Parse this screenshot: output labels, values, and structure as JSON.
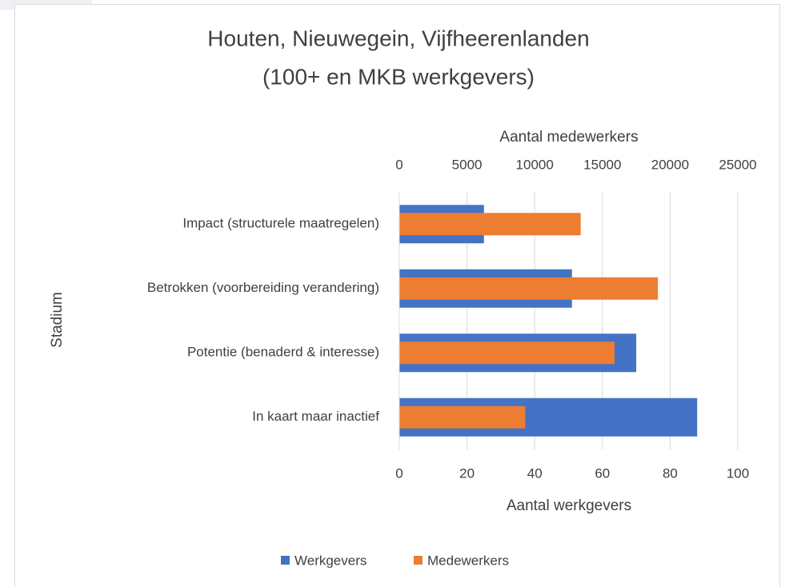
{
  "chart_data": {
    "type": "bar",
    "orientation": "horizontal",
    "title": "Houten, Nieuwegein, Vijfheerenlanden",
    "subtitle": "(100+ en MKB werkgevers)",
    "y_label": "Stadium",
    "x_label": "Aantal werkgevers",
    "x2_label": "Aantal medewerkers",
    "categories": [
      "Impact (structurele maatregelen)",
      "Betrokken (voorbereiding verandering)",
      "Potentie (benaderd & interesse)",
      "In kaart maar inactief"
    ],
    "series": [
      {
        "name": "Werkgevers",
        "color": "#4472c4",
        "axis": "x",
        "values": [
          25,
          51,
          70,
          88
        ]
      },
      {
        "name": "Medewerkers",
        "color": "#ed7d31",
        "axis": "x2",
        "values": [
          13400,
          19100,
          15900,
          9300
        ]
      }
    ],
    "xlim": [
      0,
      100
    ],
    "xticks": [
      0,
      20,
      40,
      60,
      80,
      100
    ],
    "x2lim": [
      0,
      25000
    ],
    "x2ticks": [
      0,
      5000,
      10000,
      15000,
      20000,
      25000
    ],
    "grid": true,
    "legend": "bottom"
  }
}
